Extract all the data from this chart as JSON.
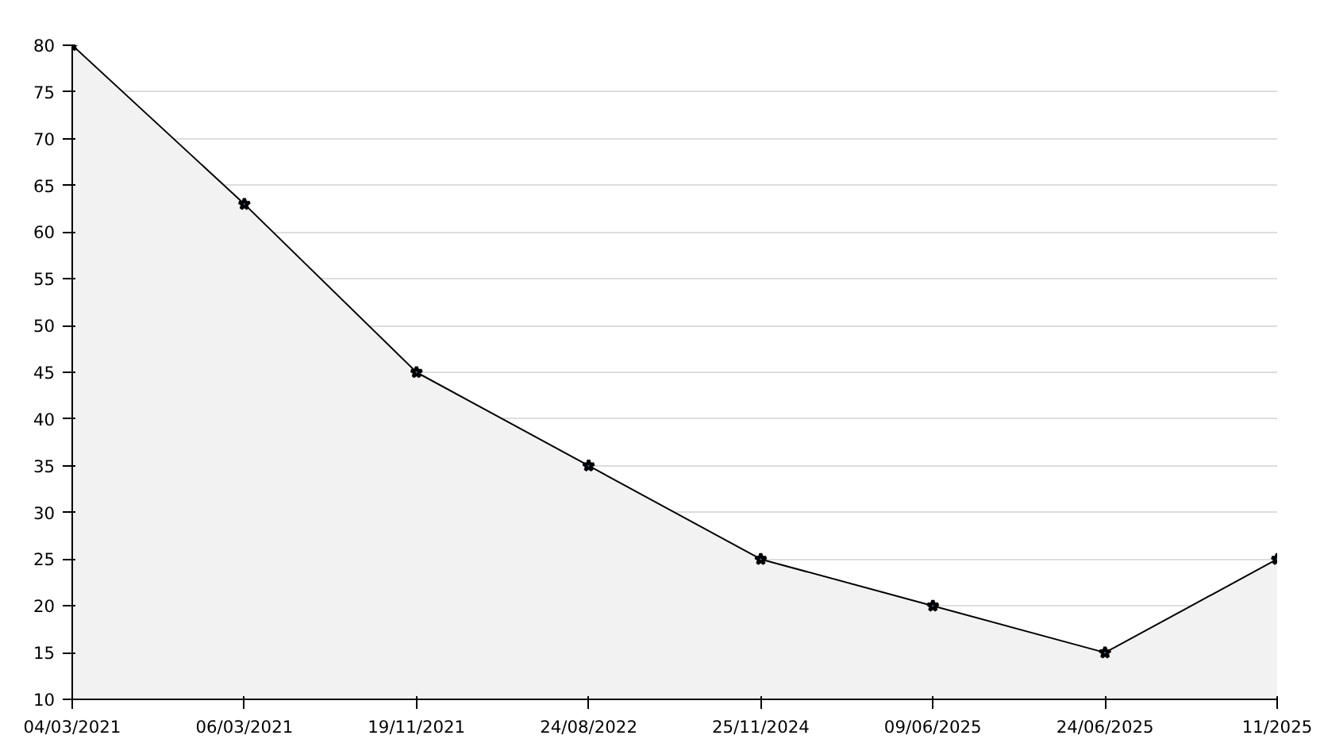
{
  "chart_data": {
    "type": "area",
    "categories": [
      "04/03/2021",
      "06/03/2021",
      "19/11/2021",
      "24/08/2022",
      "25/11/2024",
      "09/06/2025",
      "24/06/2025",
      "11/2025"
    ],
    "series": [
      {
        "color": "#000000",
        "values": [
          80,
          63,
          45,
          35,
          25,
          20,
          15,
          25
        ]
      }
    ],
    "ylim": [
      10,
      80
    ],
    "yticks": [
      10,
      15,
      20,
      25,
      30,
      35,
      40,
      45,
      50,
      55,
      60,
      65,
      70,
      75,
      80
    ],
    "grid": "y",
    "marker": "star",
    "line_style": "solid"
  }
}
